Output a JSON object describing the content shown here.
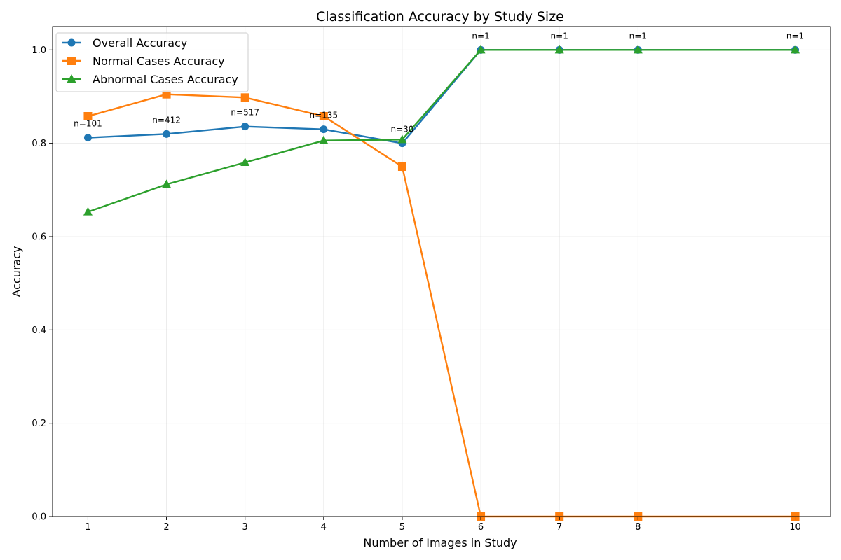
{
  "chart_data": {
    "type": "line",
    "title": "Classification Accuracy by Study Size",
    "xlabel": "Number of Images in Study",
    "ylabel": "Accuracy",
    "x": [
      1,
      2,
      3,
      4,
      5,
      6,
      7,
      8,
      10
    ],
    "xticks": [
      "1",
      "2",
      "3",
      "4",
      "5",
      "6",
      "7",
      "8",
      "10"
    ],
    "yticks": [
      "0.0",
      "0.2",
      "0.4",
      "0.6",
      "0.8",
      "1.0"
    ],
    "xlim": [
      0.55,
      10.45
    ],
    "ylim": [
      0.0,
      1.05
    ],
    "grid": true,
    "legend_position": "top-left",
    "series": [
      {
        "name": "Overall Accuracy",
        "color": "#1f77b4",
        "marker": "circle",
        "values": [
          0.812,
          0.82,
          0.836,
          0.83,
          0.8,
          1.0,
          1.0,
          1.0,
          1.0
        ]
      },
      {
        "name": "Normal Cases Accuracy",
        "color": "#ff7f0e",
        "marker": "square",
        "values": [
          0.858,
          0.905,
          0.898,
          0.858,
          0.75,
          0.0,
          0.0,
          0.0,
          0.0
        ]
      },
      {
        "name": "Abnormal Cases Accuracy",
        "color": "#2ca02c",
        "marker": "triangle",
        "values": [
          0.653,
          0.712,
          0.759,
          0.806,
          0.808,
          1.0,
          1.0,
          1.0,
          1.0
        ]
      }
    ],
    "annotations": [
      "n=101",
      "n=412",
      "n=517",
      "n=135",
      "n=30",
      "n=1",
      "n=1",
      "n=1",
      "n=1"
    ]
  }
}
